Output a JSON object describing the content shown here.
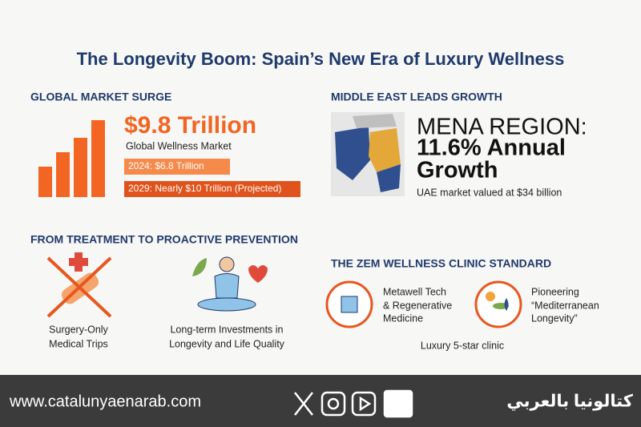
{
  "header": {
    "title": "The Longevity Boom: Spain’s New Era of Luxury Wellness"
  },
  "market": {
    "heading": "GLOBAL MARKET SURGE",
    "headline": "$9.8 Trillion",
    "subtitle": "Global Wellness Market",
    "bar_2024": "2024: $6.8 Trillion",
    "bar_2029": "2029: Nearly $10 Trillion (Projected)"
  },
  "mena": {
    "heading": "MIDDLE EAST LEADS GROWTH",
    "lines": [
      "MENA REGION:",
      "11.6% Annual",
      "Growth"
    ],
    "note": "UAE market valued at $34 billion"
  },
  "prevention": {
    "heading": "FROM TREATMENT TO PROACTIVE PREVENTION",
    "items": [
      {
        "lines": [
          "Surgery-Only",
          "Medical Trips"
        ]
      },
      {
        "lines": [
          "Long-term Investments in",
          "Longevity and Life Quality"
        ]
      }
    ]
  },
  "clinic": {
    "heading": "THE ZEM WELLNESS CLINIC STANDARD",
    "items": [
      {
        "lines": [
          "Metawell Tech",
          "& Regenerative",
          "Medicine"
        ]
      },
      {
        "lines": [
          "Pioneering",
          "“Mediterranean",
          "Longevity”"
        ]
      }
    ],
    "note": "Luxury 5-star clinic"
  },
  "footer": {
    "url": "www.catalunyaenarab.com",
    "brand": "كتالونيا بالعربي"
  }
}
